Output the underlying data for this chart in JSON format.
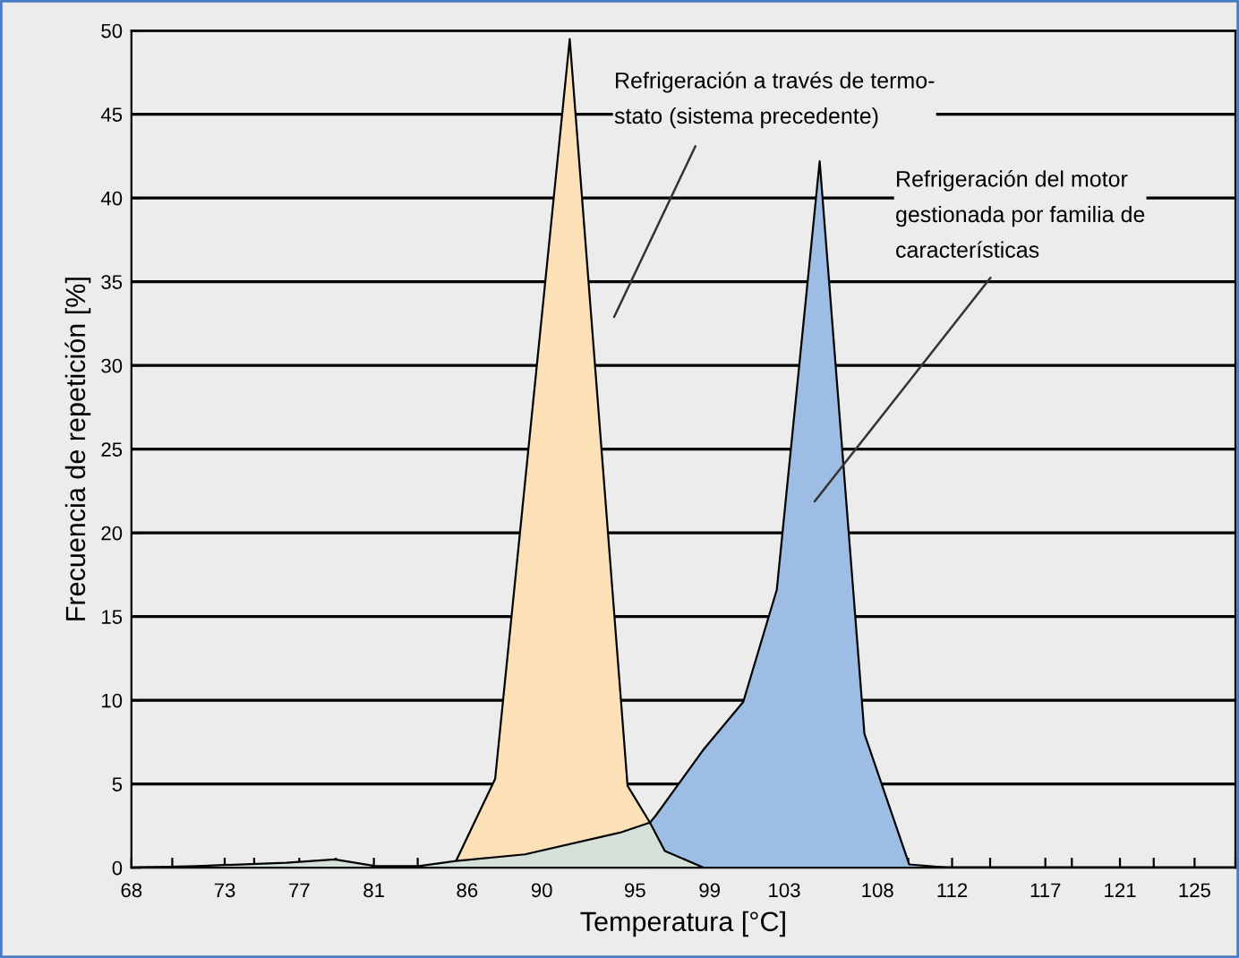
{
  "chart_data": {
    "type": "area",
    "xlabel": "Temperatura [°C]",
    "ylabel": "Frecuencia de repetición [%]",
    "series": [
      {
        "color": "#fbe0b8",
        "x": [
          85.4,
          87.5,
          91.5,
          94.6,
          95.8
        ],
        "values": [
          0.4,
          5.3,
          49.5,
          4.9,
          2.7
        ]
      },
      {
        "color": "#9dbde5",
        "x": [
          95.8,
          96.1,
          98.7,
          100.8,
          102.6,
          104.9,
          107.3,
          109.7,
          111.8
        ],
        "values": [
          2.7,
          3.1,
          7.1,
          9.9,
          16.6,
          42.2,
          8.0,
          0.2,
          0
        ]
      },
      {
        "color": "#d5e0d8",
        "x": [
          68,
          71.5,
          76.3,
          78.9,
          81.1,
          83.4,
          85.4,
          89.1,
          94.2,
          95.8,
          96.6,
          98.7
        ],
        "values": [
          0,
          0.1,
          0.3,
          0.5,
          0.1,
          0.1,
          0.4,
          0.8,
          2.1,
          2.7,
          1.0,
          0
        ]
      }
    ],
    "xlim": [
      68,
      127.19
    ],
    "xticks": [
      68,
      {
        "value": 70.19,
        "label": null
      },
      73,
      {
        "value": 74.58,
        "label": null
      },
      77,
      {
        "value": 78.96,
        "label": null
      },
      81,
      {
        "value": 83.35,
        "label": null
      },
      86,
      {
        "value": 87.73,
        "label": null
      },
      90,
      {
        "value": 92.12,
        "label": null
      },
      95,
      {
        "value": 96.5,
        "label": null
      },
      99,
      {
        "value": 100.88,
        "label": null
      },
      103,
      {
        "value": 105.27,
        "label": null
      },
      108,
      {
        "value": 109.65,
        "label": null
      },
      112,
      {
        "value": 114.04,
        "label": null
      },
      117,
      {
        "value": 118.42,
        "label": null
      },
      121,
      {
        "value": 122.81,
        "label": null
      },
      125,
      {
        "value": 127.19,
        "label": null
      }
    ],
    "ylim": [
      0,
      50
    ],
    "yticks": [
      0,
      5,
      10,
      15,
      20,
      25,
      30,
      35,
      40,
      45,
      50
    ],
    "grid": "y",
    "annotations": [
      "Refrigeración a través de termo-\nstato (sistema precedente)",
      "Refrigeración del motor\ngestionada por familia de\ncaracterísticas"
    ]
  }
}
